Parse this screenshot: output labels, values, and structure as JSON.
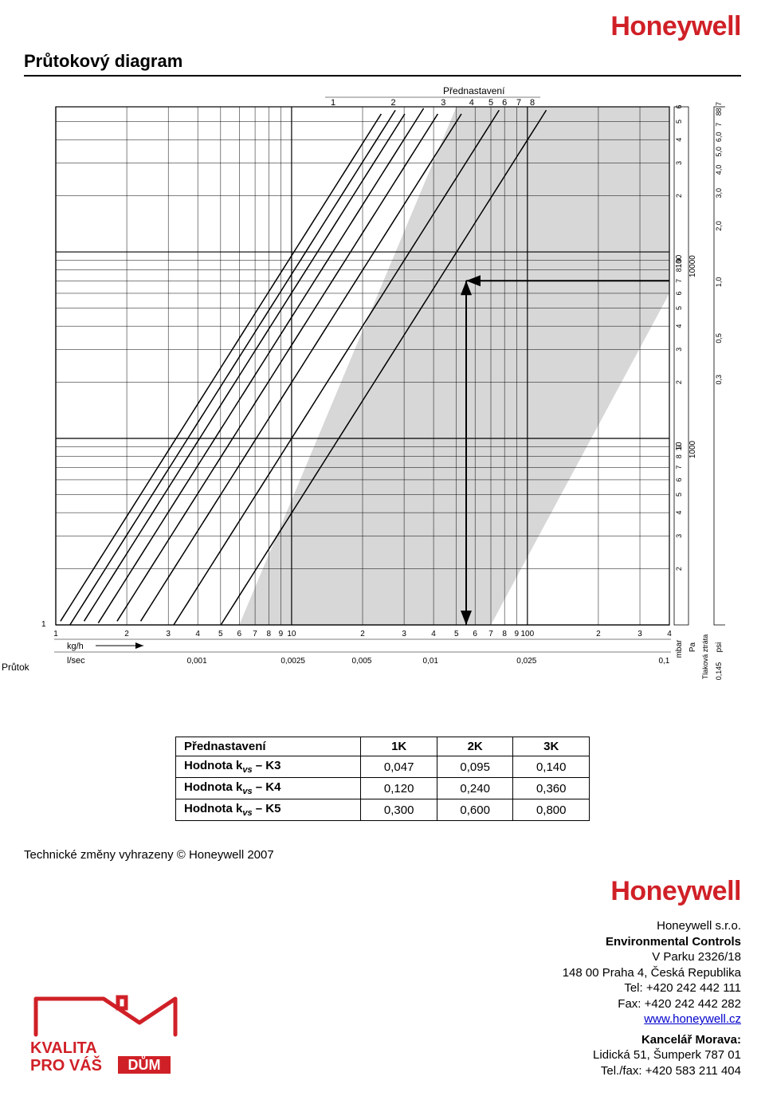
{
  "brand_color": "#d02027",
  "brand_name": "Honeywell",
  "section_title": "Průtokový diagram",
  "chart": {
    "top_label": "Přednastavení",
    "top_ticks": [
      "1",
      "2",
      "3",
      "4",
      "5",
      "6",
      "7",
      "8"
    ],
    "right_outer_ticks": [
      "2",
      "3",
      "4",
      "5",
      "6",
      "7",
      "8",
      "9"
    ],
    "right_outer2_ticks": [
      "2",
      "3",
      "4",
      "5",
      "6",
      "7",
      "8",
      "9"
    ],
    "right_psi_ticks": [
      "0,3",
      "0,5",
      "1,0",
      "2,0",
      "3,0",
      "4,0",
      "5,0",
      "6,0",
      "7",
      "8",
      "8,7"
    ],
    "right_unit_mbar": "mbar",
    "right_unit_pa": "Pa",
    "right_unit_psi": "psi",
    "right_label": "Tlaková ztráta",
    "right_mbar_100": "100",
    "right_pa_10000": "10000",
    "right_mbar_10": "10",
    "right_pa_1000": "1000",
    "psi_base": "0,145",
    "x_unit_kgh": "kg/h",
    "x_unit_lsec": "l/sec",
    "x_lsec_ticks": [
      "0,001",
      "0,0025",
      "0,005",
      "0,01",
      "0,025",
      "0,1"
    ],
    "x_main_ticks": [
      "1",
      "2",
      "3",
      "4",
      "5",
      "6",
      "7",
      "8",
      "9",
      "10",
      "2",
      "3",
      "4",
      "5",
      "6",
      "7",
      "8",
      "9",
      "100",
      "2",
      "3",
      "4"
    ],
    "prutok_label": "Průtok",
    "shade_color": "#d7d7d7",
    "line_color": "#000000",
    "grid_color": "#000000"
  },
  "table": {
    "header": [
      "Přednastavení",
      "1K",
      "2K",
      "3K"
    ],
    "rows": [
      {
        "label_prefix": "Hodnota k",
        "label_sub": "vs",
        "label_suffix": " – K3",
        "cells": [
          "0,047",
          "0,095",
          "0,140"
        ]
      },
      {
        "label_prefix": "Hodnota k",
        "label_sub": "vs",
        "label_suffix": " – K4",
        "cells": [
          "0,120",
          "0,240",
          "0,360"
        ]
      },
      {
        "label_prefix": "Hodnota k",
        "label_sub": "vs",
        "label_suffix": " – K5",
        "cells": [
          "0,300",
          "0,600",
          "0,800"
        ]
      }
    ]
  },
  "tech_note": "Technické změny vyhrazeny © Honeywell 2007",
  "quality_badge": {
    "line1": "KVALITA",
    "line2_prefix": "PRO VÁŠ ",
    "line2_box": "DŮM",
    "color": "#d02027"
  },
  "address": {
    "company": "Honeywell s.r.o.",
    "dept": "Environmental Controls",
    "street": "V Parku 2326/18",
    "city": "148 00 Praha 4, Česká Republika",
    "tel": "Tel: +420 242 442 111",
    "fax": "Fax: +420 242 442 282",
    "url": "www.honeywell.cz",
    "office_title": "Kancelář Morava:",
    "office_street": "Lidická 51, Šumperk 787 01",
    "office_tel": "Tel./fax: +420 583 211 404"
  }
}
